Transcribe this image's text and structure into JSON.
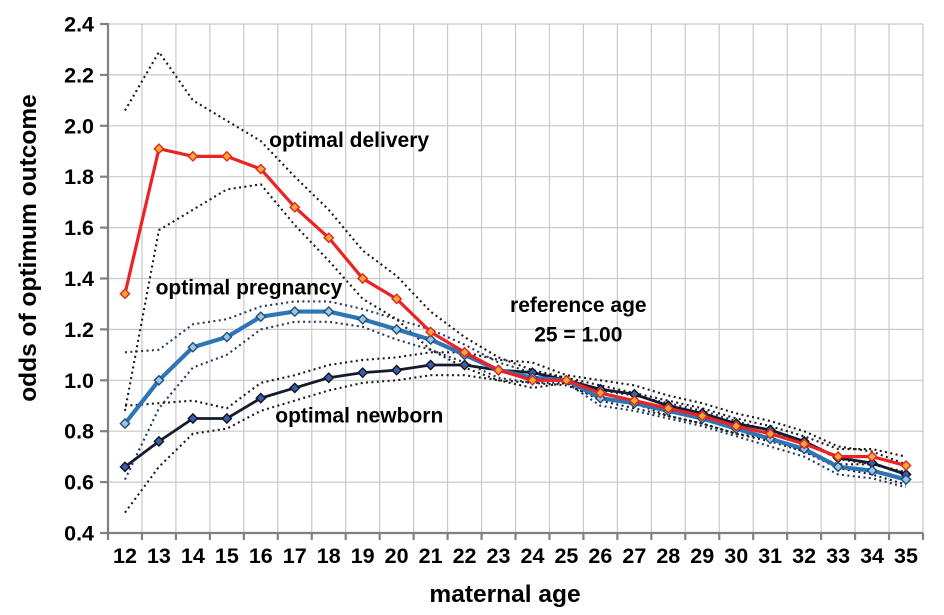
{
  "chart_data": {
    "type": "line",
    "title": "",
    "xlabel": "maternal age",
    "ylabel": "odds of optimum outcome",
    "x": [
      12,
      13,
      14,
      15,
      16,
      17,
      18,
      19,
      20,
      21,
      22,
      23,
      24,
      25,
      26,
      27,
      28,
      29,
      30,
      31,
      32,
      33,
      34,
      35
    ],
    "ylim": [
      0.4,
      2.4
    ],
    "ytick_step": 0.2,
    "grid": true,
    "legend_position": "none",
    "grid_color": "#C9C9C9",
    "axis_color": "#808080",
    "series": [
      {
        "name": "optimal newborn",
        "line_color": "#141B2C",
        "line_width": 2.8,
        "marker": "diamond",
        "marker_fill": "#3B5EA9",
        "marker_stroke": "#0D1320",
        "ci_color": "#1A1A1A",
        "values": [
          0.66,
          0.76,
          0.85,
          0.85,
          0.93,
          0.97,
          1.01,
          1.03,
          1.04,
          1.06,
          1.06,
          1.04,
          1.03,
          1.0,
          0.965,
          0.945,
          0.9,
          0.87,
          0.83,
          0.805,
          0.76,
          0.695,
          0.675,
          0.63
        ],
        "ci_upper": [
          0.9,
          0.91,
          0.92,
          0.89,
          0.99,
          1.02,
          1.06,
          1.08,
          1.09,
          1.11,
          1.11,
          1.08,
          1.07,
          1.02,
          1.0,
          0.98,
          0.94,
          0.91,
          0.87,
          0.84,
          0.8,
          0.74,
          0.72,
          0.67
        ],
        "ci_lower": [
          0.48,
          0.66,
          0.79,
          0.81,
          0.88,
          0.92,
          0.96,
          0.99,
          1.0,
          1.02,
          1.02,
          1.0,
          0.99,
          0.98,
          0.93,
          0.91,
          0.86,
          0.83,
          0.79,
          0.77,
          0.72,
          0.655,
          0.63,
          0.59
        ]
      },
      {
        "name": "optimal pregnancy",
        "line_color": "#2E75B6",
        "line_width": 4.2,
        "marker": "diamond",
        "marker_fill": "#9DC3E6",
        "marker_stroke": "#1F4E79",
        "ci_color": "#1F3864",
        "values": [
          0.83,
          1.0,
          1.13,
          1.17,
          1.25,
          1.27,
          1.27,
          1.24,
          1.2,
          1.16,
          1.1,
          1.04,
          1.01,
          1.0,
          0.93,
          0.91,
          0.88,
          0.85,
          0.81,
          0.77,
          0.73,
          0.66,
          0.645,
          0.61
        ],
        "ci_upper": [
          1.11,
          1.12,
          1.22,
          1.24,
          1.29,
          1.31,
          1.31,
          1.28,
          1.24,
          1.2,
          1.14,
          1.07,
          1.03,
          1.01,
          0.96,
          0.94,
          0.91,
          0.88,
          0.84,
          0.8,
          0.76,
          0.69,
          0.67,
          0.64
        ],
        "ci_lower": [
          0.61,
          0.89,
          1.05,
          1.1,
          1.2,
          1.23,
          1.23,
          1.21,
          1.16,
          1.12,
          1.07,
          1.01,
          0.99,
          0.99,
          0.9,
          0.88,
          0.85,
          0.82,
          0.78,
          0.74,
          0.7,
          0.63,
          0.615,
          0.58
        ]
      },
      {
        "name": "optimal delivery",
        "line_color": "#EC2224",
        "line_width": 3.2,
        "marker": "diamond",
        "marker_fill": "#FFA437",
        "marker_stroke": "#D92B21",
        "ci_color": "#1A1A1A",
        "values": [
          1.34,
          1.91,
          1.88,
          1.88,
          1.83,
          1.68,
          1.56,
          1.4,
          1.32,
          1.19,
          1.11,
          1.04,
          1.0,
          1.0,
          0.95,
          0.92,
          0.89,
          0.86,
          0.82,
          0.79,
          0.75,
          0.7,
          0.7,
          0.665
        ],
        "ci_upper": [
          2.06,
          2.29,
          2.1,
          2.02,
          1.94,
          1.8,
          1.67,
          1.51,
          1.41,
          1.27,
          1.17,
          1.09,
          1.04,
          1.01,
          0.98,
          0.95,
          0.92,
          0.89,
          0.85,
          0.82,
          0.78,
          0.73,
          0.73,
          0.7
        ],
        "ci_lower": [
          0.88,
          1.59,
          1.67,
          1.75,
          1.77,
          1.61,
          1.47,
          1.32,
          1.24,
          1.12,
          1.05,
          1.0,
          0.97,
          0.99,
          0.92,
          0.89,
          0.86,
          0.83,
          0.79,
          0.76,
          0.72,
          0.67,
          0.67,
          0.635
        ]
      }
    ],
    "annotations": [
      {
        "text": "optimal delivery",
        "age": 18.6,
        "value": 1.945
      },
      {
        "text": "optimal pregnancy",
        "age": 15.65,
        "value": 1.365
      },
      {
        "text": "optimal newborn",
        "age": 18.9,
        "value": 0.862
      },
      {
        "text": "reference age",
        "age": 25.35,
        "value": 1.295
      },
      {
        "text": "25 = 1.00",
        "age": 25.35,
        "value": 1.18
      }
    ]
  }
}
